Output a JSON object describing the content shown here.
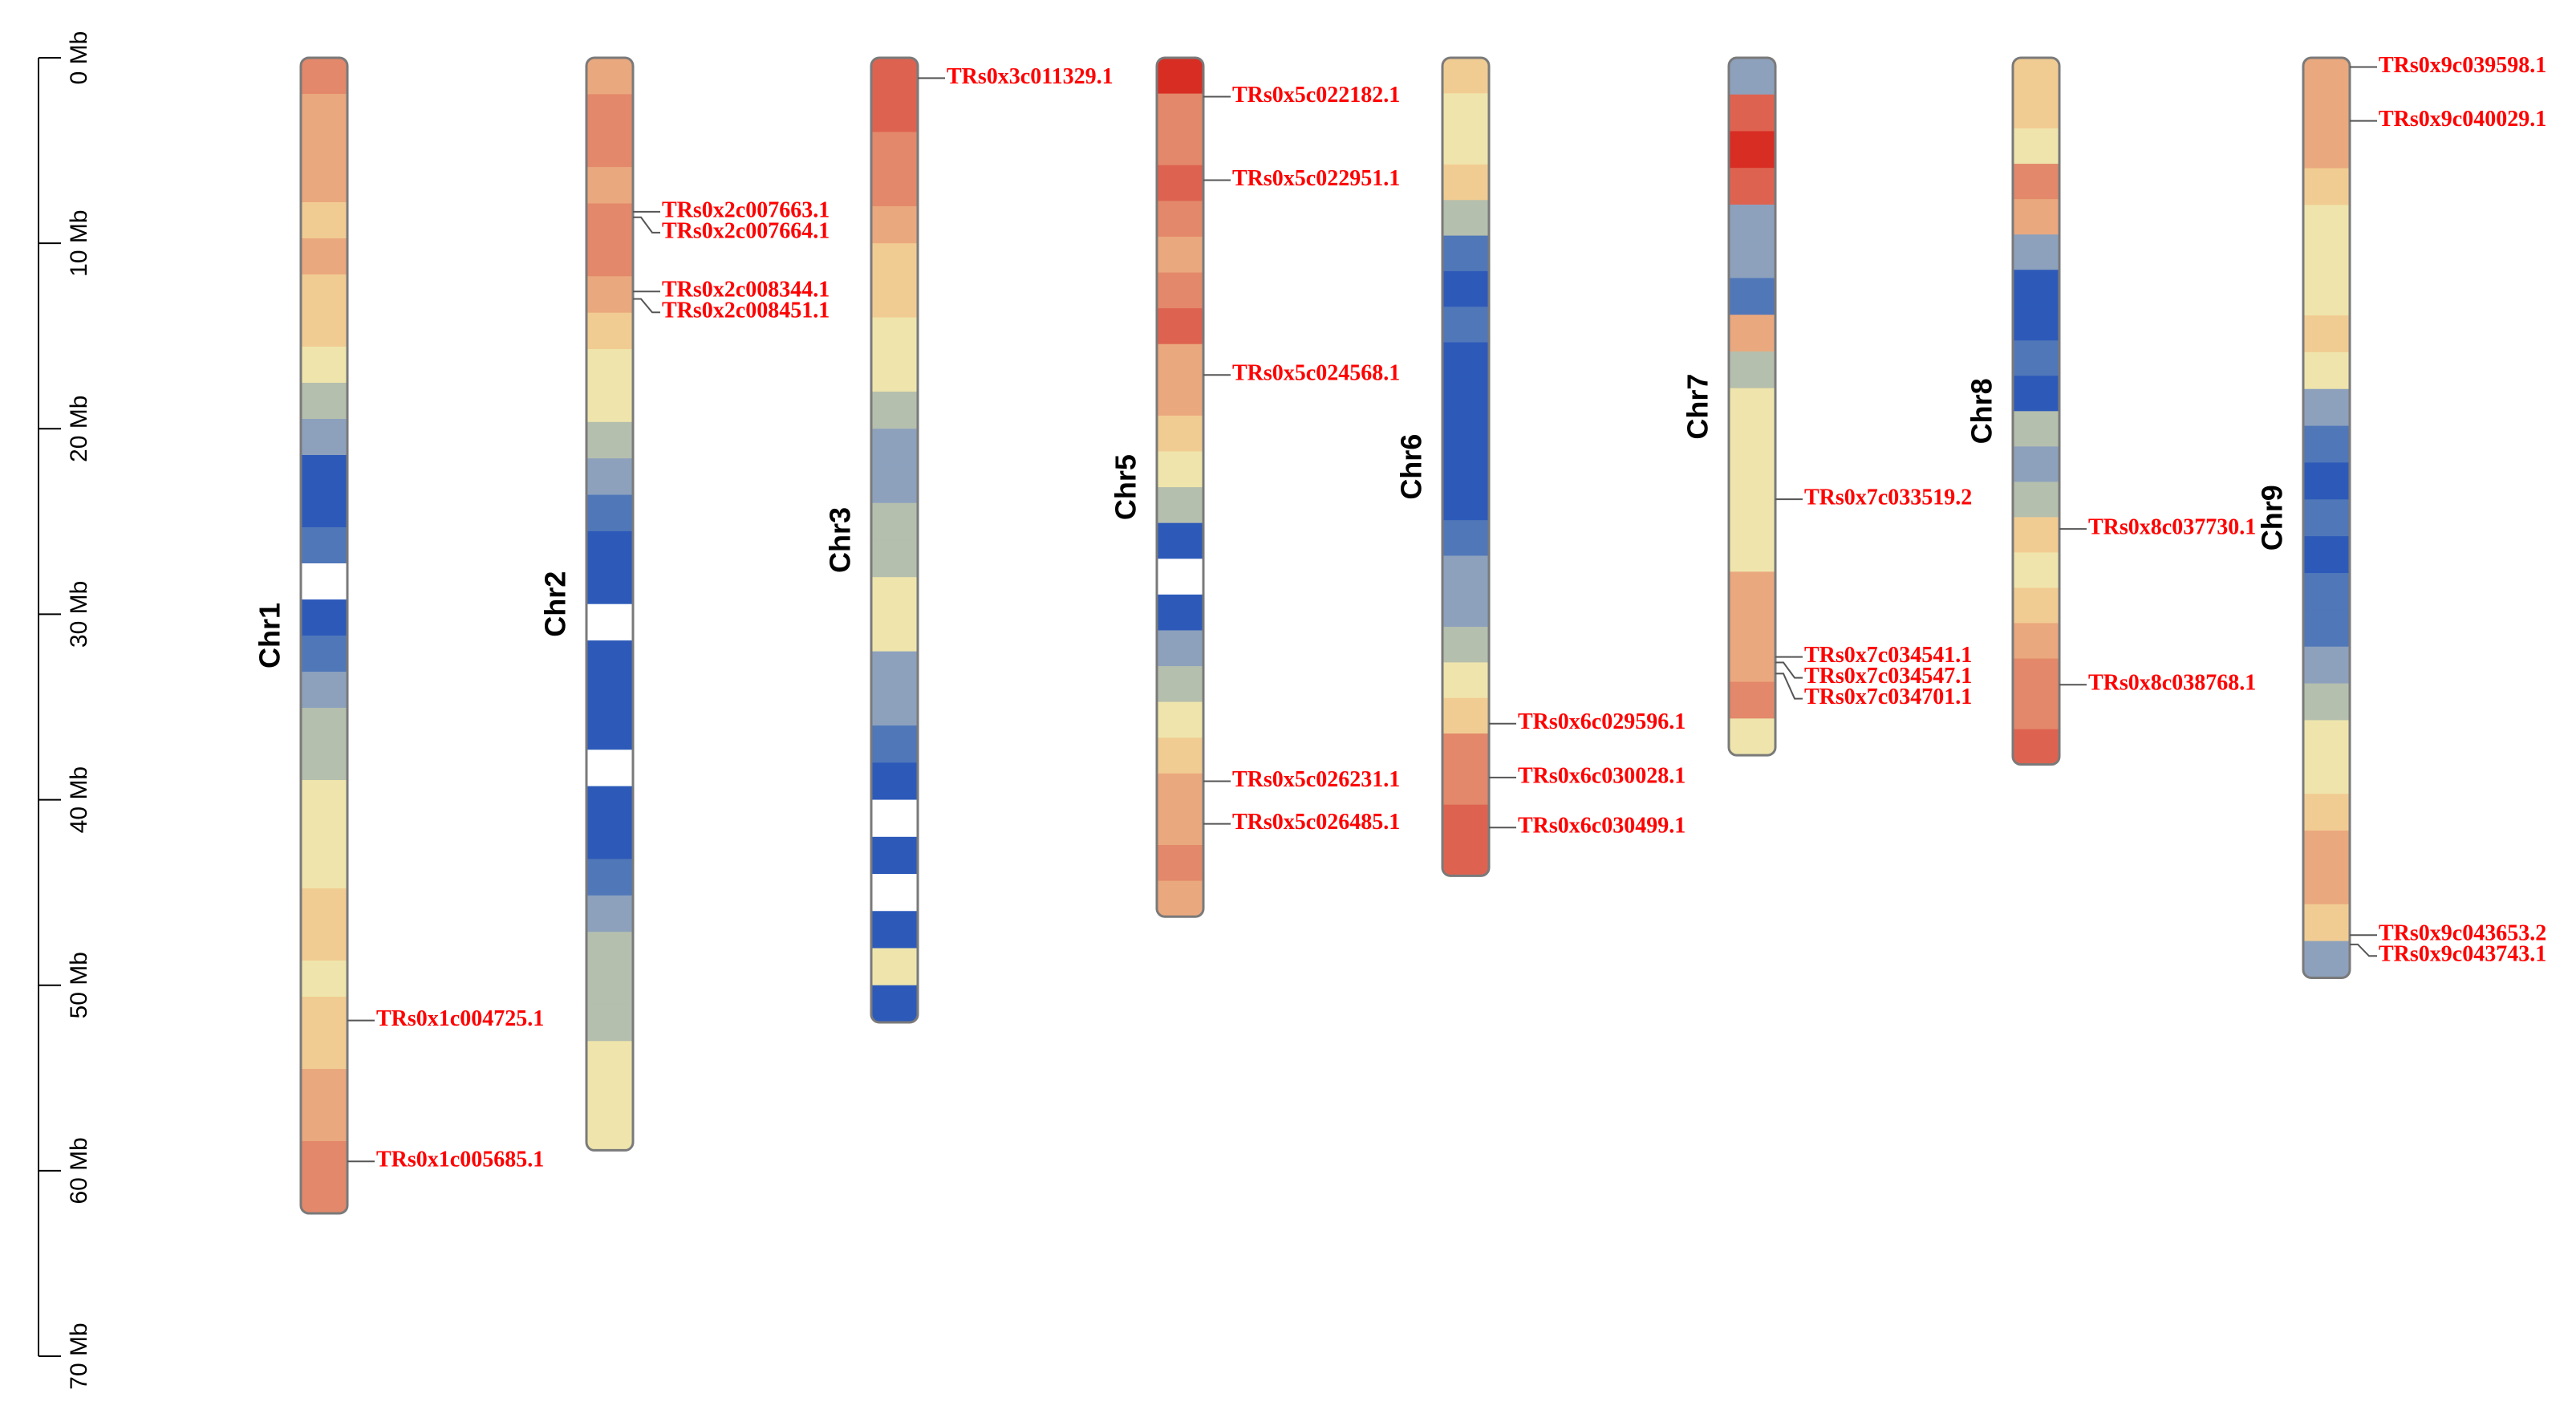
{
  "chart_data": {
    "type": "ideogram",
    "ylim": [
      0,
      70
    ],
    "yticks": [
      {
        "value": 0,
        "label": "0 Mb"
      },
      {
        "value": 10,
        "label": "10 Mb"
      },
      {
        "value": 20,
        "label": "20 Mb"
      },
      {
        "value": 30,
        "label": "30 Mb"
      },
      {
        "value": 40,
        "label": "40 Mb"
      },
      {
        "value": 50,
        "label": "50 Mb"
      },
      {
        "value": 60,
        "label": "60 Mb"
      },
      {
        "value": 70,
        "label": "70 Mb"
      }
    ],
    "density_colors": [
      "#ffffff",
      "#2d5ab9",
      "#5077b8",
      "#8da1bd",
      "#b5bfae",
      "#efe5ac",
      "#f1cc92",
      "#eaa87e",
      "#e3886a",
      "#dd6350",
      "#d82d23"
    ],
    "label_color": "#ff0000",
    "chromosomes": [
      {
        "name": "Chr1",
        "length": 62.3,
        "density": [
          8,
          7,
          7,
          7,
          6,
          7,
          6,
          6,
          5,
          4,
          3,
          1,
          1,
          2,
          0,
          1,
          2,
          3,
          4,
          4,
          5,
          5,
          5,
          6,
          6,
          5,
          6,
          6,
          7,
          7,
          8,
          8
        ],
        "genes": [
          {
            "name": "TRs0x1c004725.1",
            "position": 51.9
          },
          {
            "name": "TRs0x1c005685.1",
            "position": 59.5
          }
        ]
      },
      {
        "name": "Chr2",
        "length": 58.9,
        "density": [
          7,
          8,
          8,
          7,
          8,
          8,
          7,
          6,
          5,
          5,
          4,
          3,
          2,
          1,
          1,
          0,
          1,
          1,
          1,
          0,
          1,
          1,
          2,
          3,
          4,
          4,
          4,
          5,
          5,
          5
        ],
        "genes": [
          {
            "name": "TRs0x2c007663.1",
            "position": 8.3
          },
          {
            "name": "TRs0x2c007664.1",
            "position": 8.6
          },
          {
            "name": "TRs0x2c008344.1",
            "position": 12.6
          },
          {
            "name": "TRs0x2c008451.1",
            "position": 13.0
          }
        ]
      },
      {
        "name": "Chr3",
        "length": 52.0,
        "density": [
          9,
          9,
          8,
          8,
          7,
          6,
          6,
          5,
          5,
          4,
          3,
          3,
          4,
          4,
          5,
          5,
          3,
          3,
          2,
          1,
          0,
          1,
          0,
          1,
          5,
          1
        ],
        "genes": [
          {
            "name": "TRs0x3c011329.1",
            "position": 1.1
          }
        ]
      },
      {
        "name": "Chr5",
        "length": 46.3,
        "density": [
          10,
          8,
          8,
          9,
          8,
          7,
          8,
          9,
          7,
          7,
          6,
          5,
          4,
          1,
          0,
          1,
          3,
          4,
          5,
          6,
          7,
          7,
          8,
          7
        ],
        "genes": [
          {
            "name": "TRs0x5c022182.1",
            "position": 2.1
          },
          {
            "name": "TRs0x5c022951.1",
            "position": 6.6
          },
          {
            "name": "TRs0x5c024568.1",
            "position": 17.1
          },
          {
            "name": "TRs0x5c026231.1",
            "position": 39.0
          },
          {
            "name": "TRs0x5c026485.1",
            "position": 41.3
          }
        ]
      },
      {
        "name": "Chr6",
        "length": 44.1,
        "density": [
          6,
          5,
          5,
          6,
          4,
          2,
          1,
          2,
          1,
          1,
          1,
          1,
          1,
          2,
          3,
          3,
          4,
          5,
          6,
          8,
          8,
          9,
          9
        ],
        "genes": [
          {
            "name": "TRs0x6c029596.1",
            "position": 35.9
          },
          {
            "name": "TRs0x6c030028.1",
            "position": 38.8
          },
          {
            "name": "TRs0x6c030499.1",
            "position": 41.5
          }
        ]
      },
      {
        "name": "Chr7",
        "length": 37.6,
        "density": [
          3,
          9,
          10,
          9,
          3,
          3,
          2,
          7,
          4,
          5,
          5,
          5,
          5,
          5,
          7,
          7,
          7,
          8,
          5
        ],
        "genes": [
          {
            "name": "TRs0x7c033519.2",
            "position": 23.8
          },
          {
            "name": "TRs0x7c034541.1",
            "position": 32.3
          },
          {
            "name": "TRs0x7c034547.1",
            "position": 32.6
          },
          {
            "name": "TRs0x7c034701.1",
            "position": 33.2
          }
        ]
      },
      {
        "name": "Chr8",
        "length": 38.1,
        "density": [
          6,
          6,
          5,
          8,
          7,
          3,
          1,
          1,
          2,
          1,
          4,
          3,
          4,
          6,
          5,
          6,
          7,
          8,
          8,
          9
        ],
        "genes": [
          {
            "name": "TRs0x8c037730.1",
            "position": 25.4
          },
          {
            "name": "TRs0x8c038768.1",
            "position": 33.8
          }
        ]
      },
      {
        "name": "Chr9",
        "length": 49.6,
        "density": [
          7,
          7,
          7,
          6,
          5,
          5,
          5,
          6,
          5,
          3,
          2,
          1,
          2,
          1,
          2,
          2,
          3,
          4,
          5,
          5,
          6,
          7,
          7,
          6,
          3
        ],
        "genes": [
          {
            "name": "TRs0x9c039598.1",
            "position": 0.5
          },
          {
            "name": "TRs0x9c040029.1",
            "position": 3.4
          },
          {
            "name": "TRs0x9c043653.2",
            "position": 47.3
          },
          {
            "name": "TRs0x9c043743.1",
            "position": 47.8
          }
        ]
      }
    ]
  }
}
